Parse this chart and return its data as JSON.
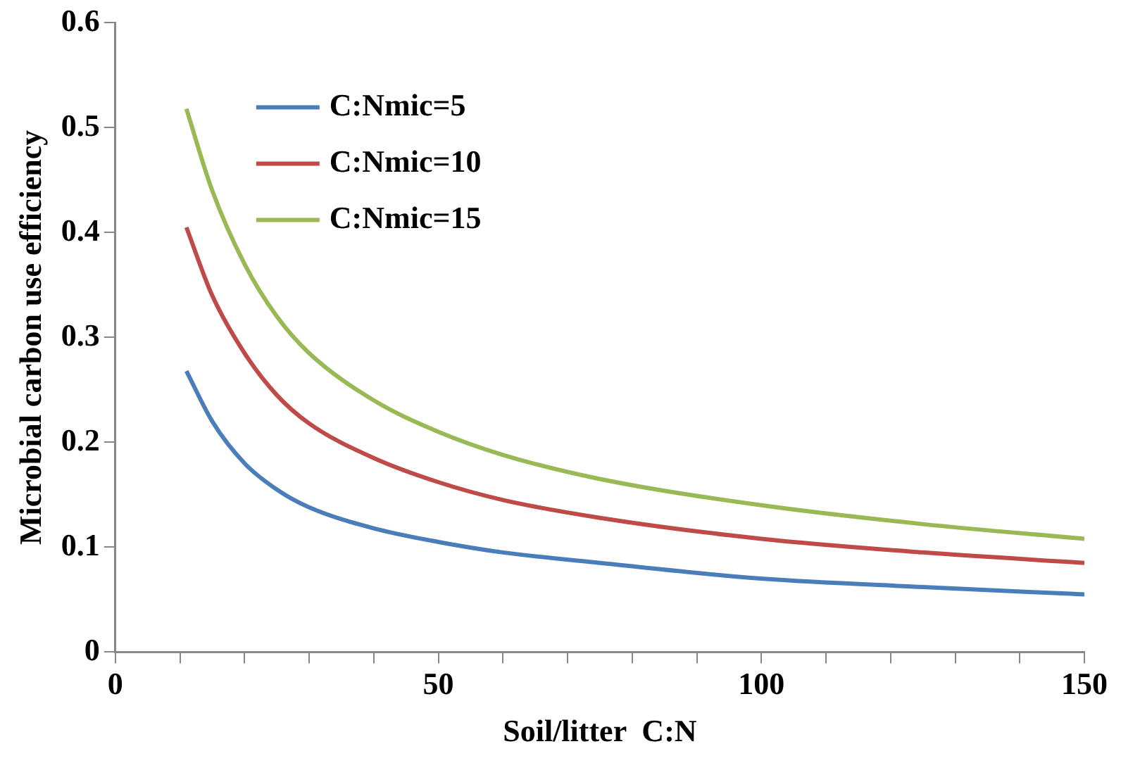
{
  "chart_data": {
    "type": "line",
    "xlabel": "Soil/litter  C:N",
    "ylabel": "Microbial carbon use efficiency",
    "x": [
      11,
      15,
      20,
      25,
      30,
      40,
      50,
      60,
      75,
      100,
      125,
      150
    ],
    "series": [
      {
        "name": "C:Nmic=5",
        "color": "#4a7ebb",
        "values": [
          0.268,
          0.22,
          0.18,
          0.155,
          0.138,
          0.118,
          0.105,
          0.095,
          0.085,
          0.07,
          0.062,
          0.055
        ]
      },
      {
        "name": "C:Nmic=10",
        "color": "#be4b48",
        "values": [
          0.405,
          0.34,
          0.285,
          0.245,
          0.218,
          0.185,
          0.162,
          0.145,
          0.128,
          0.108,
          0.095,
          0.085
        ]
      },
      {
        "name": "C:Nmic=15",
        "color": "#98b954",
        "values": [
          0.518,
          0.44,
          0.37,
          0.32,
          0.285,
          0.24,
          0.21,
          0.188,
          0.165,
          0.14,
          0.122,
          0.108
        ]
      }
    ],
    "xlim": [
      0,
      150
    ],
    "xticks": [
      0,
      {
        "value": 10,
        "label": null
      },
      {
        "value": 20,
        "label": null
      },
      {
        "value": 30,
        "label": null
      },
      {
        "value": 40,
        "label": null
      },
      50,
      {
        "value": 60,
        "label": null
      },
      {
        "value": 70,
        "label": null
      },
      {
        "value": 80,
        "label": null
      },
      {
        "value": 90,
        "label": null
      },
      100,
      {
        "value": 110,
        "label": null
      },
      {
        "value": 120,
        "label": null
      },
      {
        "value": 130,
        "label": null
      },
      {
        "value": 140,
        "label": null
      },
      150
    ],
    "ylim": [
      0,
      0.6
    ],
    "yticks": [
      0,
      0.1,
      0.2,
      0.3,
      0.4,
      0.5,
      0.6
    ],
    "grid": false,
    "legend": "top left",
    "marker": "none",
    "line_style": "solid"
  }
}
